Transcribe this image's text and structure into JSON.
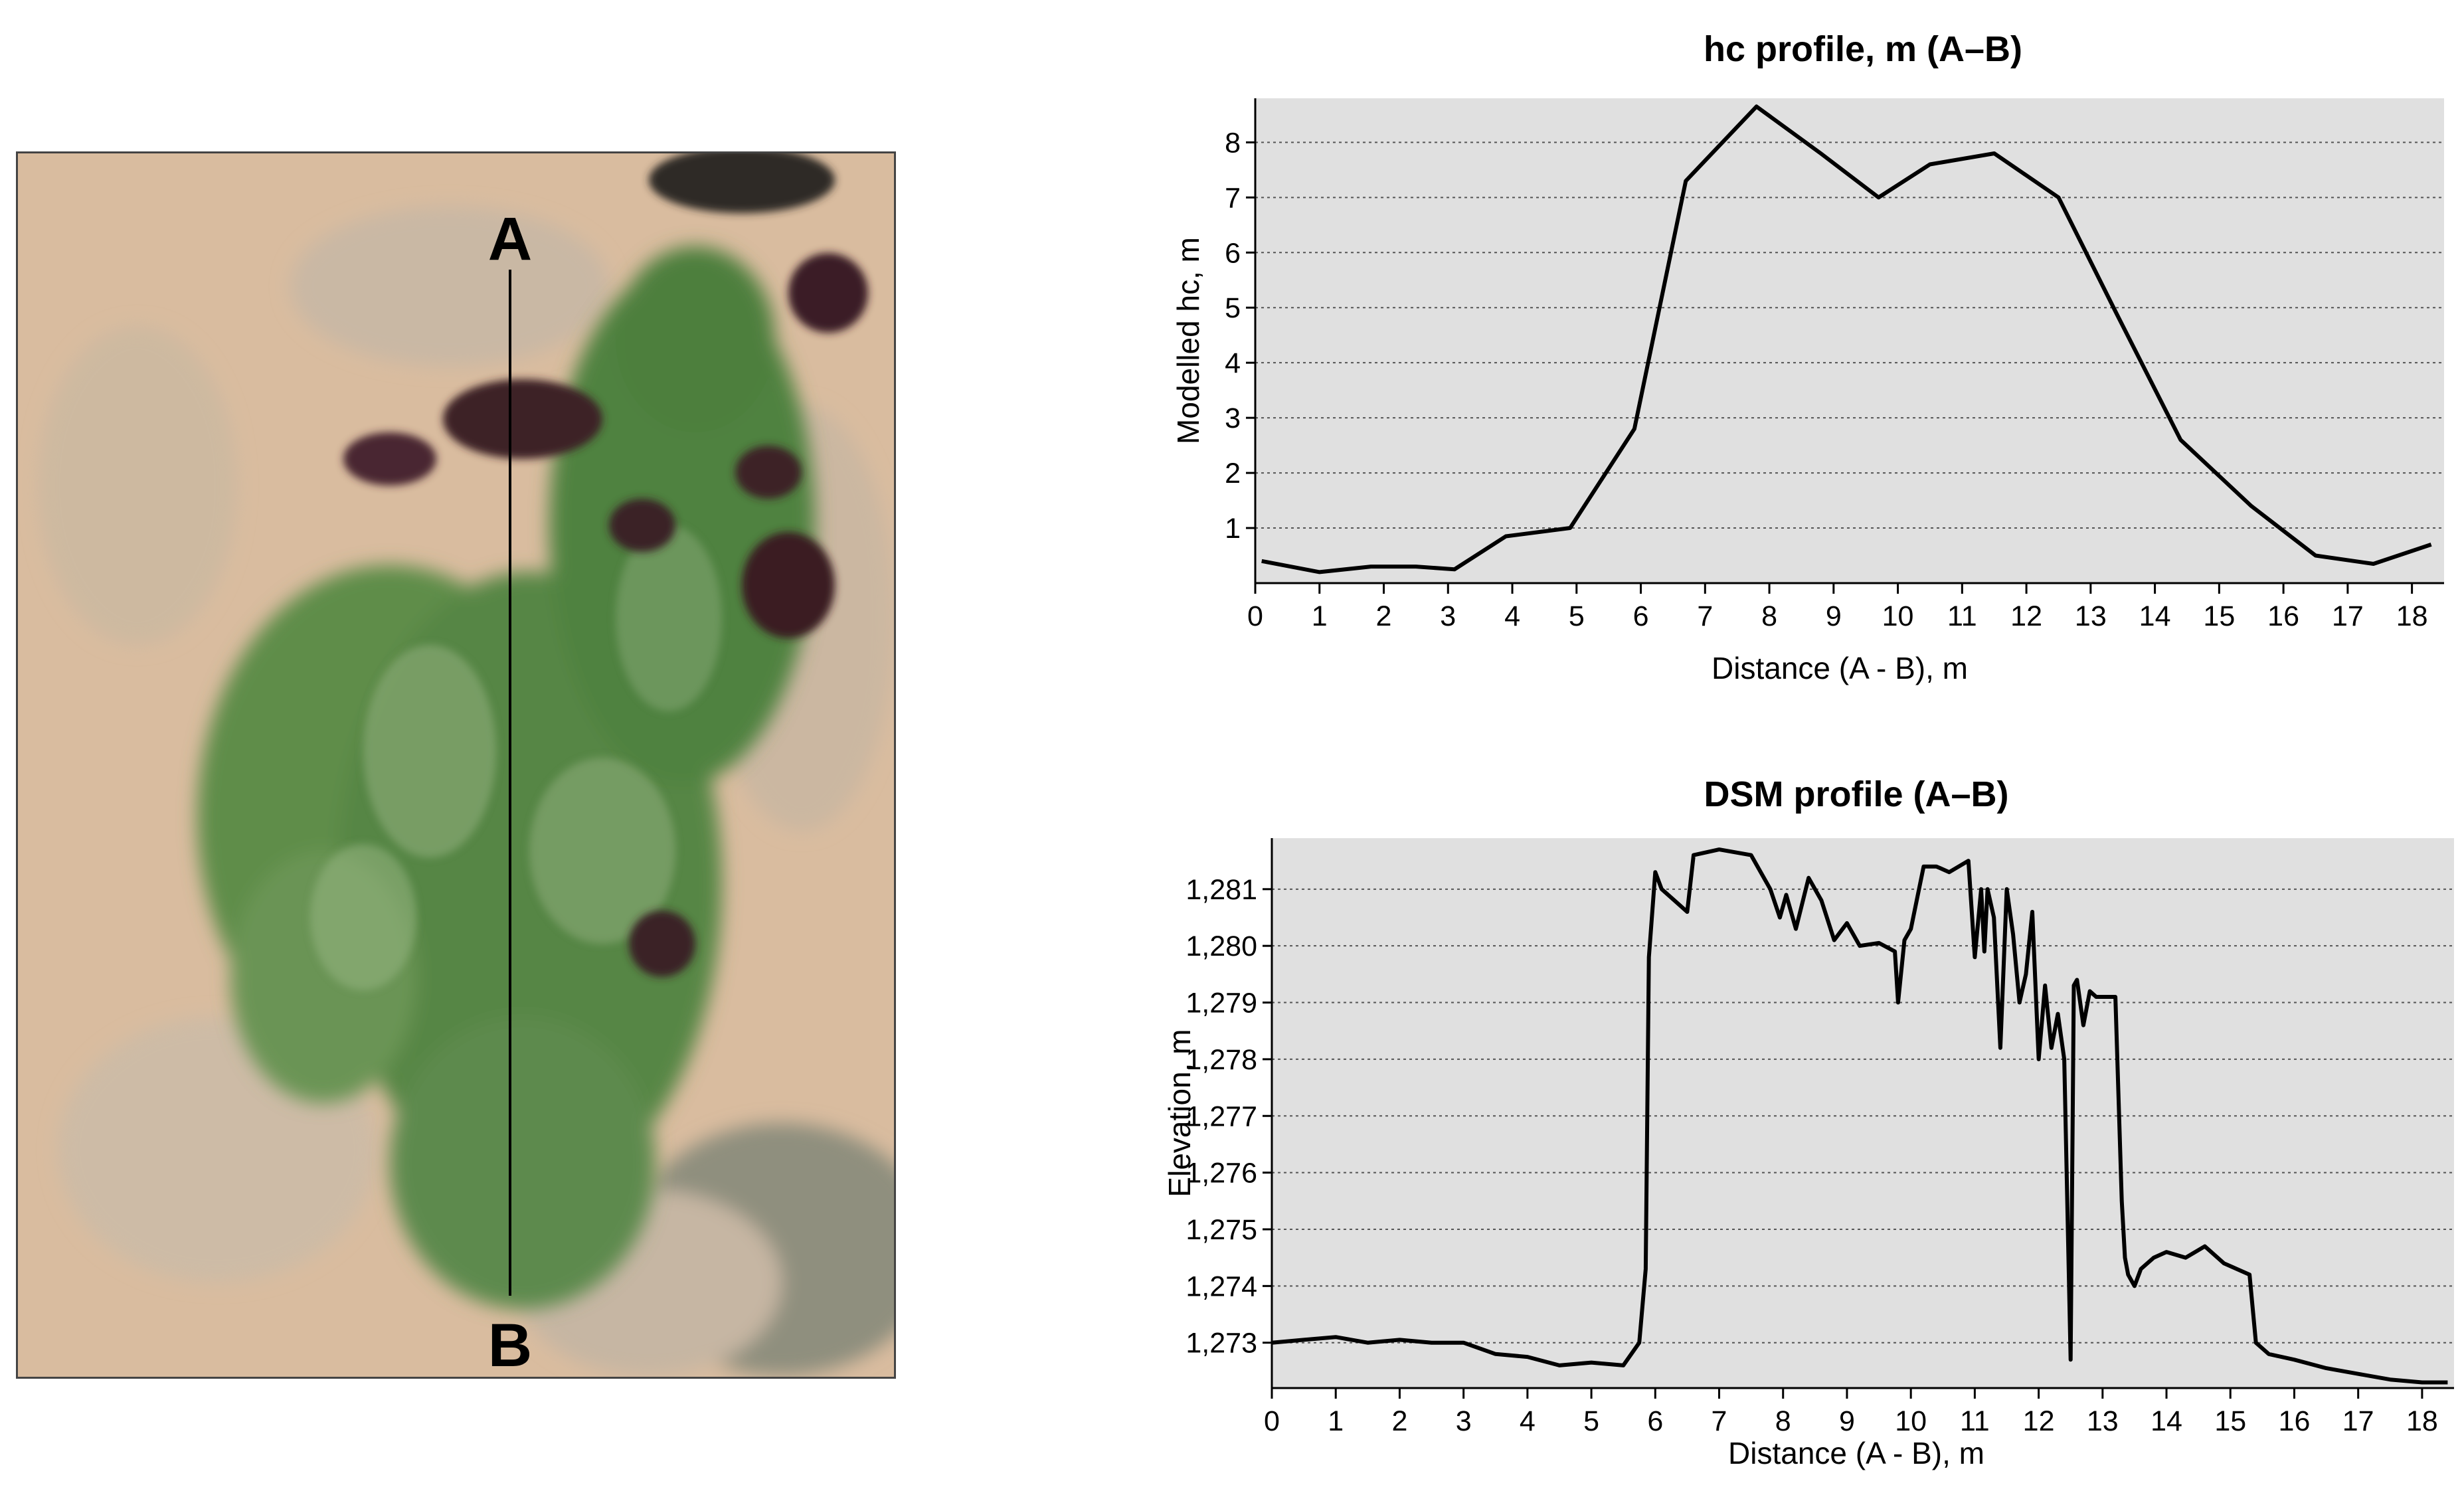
{
  "aerial_image": {
    "label_a": "A",
    "label_b": "B",
    "colors": {
      "soil": "#d8b99a",
      "canopy": "#5b8a48",
      "shadow": "#3a1f24",
      "transect": "#000000"
    }
  },
  "chart_data": [
    {
      "type": "line",
      "title": "hc profile, m (A–B)",
      "xlabel": "Distance (A - B), m",
      "ylabel": "Modelled hc, m",
      "xlim": [
        0,
        18.5
      ],
      "ylim": [
        0,
        8.8
      ],
      "xticks": [
        0,
        1,
        2,
        3,
        4,
        5,
        6,
        7,
        8,
        9,
        10,
        11,
        12,
        13,
        14,
        15,
        16,
        17,
        18
      ],
      "yticks": [
        1,
        2,
        3,
        4,
        5,
        6,
        7,
        8
      ],
      "grid": "horizontal dotted",
      "colors": {
        "plot_bg": "#e0e0e0",
        "line": "#000000"
      },
      "series": [
        {
          "x": [
            0.1,
            1.0,
            1.8,
            2.5,
            3.1,
            3.9,
            4.9,
            5.9,
            6.7,
            7.8,
            8.8,
            9.7,
            10.5,
            11.5,
            12.5,
            13.4,
            14.4,
            15.5,
            16.5,
            17.4,
            18.3
          ],
          "y": [
            0.4,
            0.2,
            0.3,
            0.3,
            0.25,
            0.85,
            1.0,
            2.8,
            7.3,
            8.65,
            7.8,
            7.0,
            7.6,
            7.8,
            7.0,
            4.9,
            2.6,
            1.4,
            0.5,
            0.35,
            0.7
          ]
        }
      ]
    },
    {
      "type": "line",
      "title": "DSM profile (A–B)",
      "xlabel": "Distance (A - B), m",
      "ylabel": "Elevation, m",
      "xlim": [
        0,
        18.5
      ],
      "ylim": [
        1272.2,
        1281.9
      ],
      "xticks": [
        0,
        1,
        2,
        3,
        4,
        5,
        6,
        7,
        8,
        9,
        10,
        11,
        12,
        13,
        14,
        15,
        16,
        17,
        18
      ],
      "yticks": [
        1273,
        1274,
        1275,
        1276,
        1277,
        1278,
        1279,
        1280,
        1281
      ],
      "ytick_labels": [
        "1,273",
        "1,274",
        "1,275",
        "1,276",
        "1,277",
        "1,278",
        "1,279",
        "1,280",
        "1,281"
      ],
      "grid": "horizontal dotted",
      "colors": {
        "plot_bg": "#e0e0e0",
        "line": "#000000"
      },
      "series": [
        {
          "x": [
            0.0,
            0.5,
            1.0,
            1.5,
            2.0,
            2.5,
            3.0,
            3.5,
            4.0,
            4.5,
            5.0,
            5.5,
            5.75,
            5.85,
            5.9,
            6.0,
            6.1,
            6.3,
            6.5,
            6.6,
            7.0,
            7.5,
            7.8,
            7.95,
            8.05,
            8.2,
            8.4,
            8.6,
            8.8,
            9.0,
            9.2,
            9.5,
            9.75,
            9.8,
            9.9,
            10.0,
            10.2,
            10.4,
            10.6,
            10.9,
            11.0,
            11.1,
            11.15,
            11.2,
            11.3,
            11.4,
            11.5,
            11.6,
            11.7,
            11.8,
            11.9,
            12.0,
            12.1,
            12.2,
            12.3,
            12.4,
            12.5,
            12.55,
            12.6,
            12.7,
            12.8,
            12.9,
            13.0,
            13.2,
            13.3,
            13.35,
            13.4,
            13.5,
            13.6,
            13.8,
            14.0,
            14.3,
            14.6,
            14.9,
            15.1,
            15.3,
            15.4,
            15.6,
            16.0,
            16.5,
            17.0,
            17.5,
            18.0,
            18.4
          ],
          "y": [
            1273.0,
            1273.05,
            1273.1,
            1273.0,
            1273.05,
            1273.0,
            1273.0,
            1272.8,
            1272.75,
            1272.6,
            1272.65,
            1272.6,
            1273.0,
            1274.3,
            1279.8,
            1281.3,
            1281.0,
            1280.8,
            1280.6,
            1281.6,
            1281.7,
            1281.6,
            1281.0,
            1280.5,
            1280.9,
            1280.3,
            1281.2,
            1280.8,
            1280.1,
            1280.4,
            1280.0,
            1280.05,
            1279.9,
            1279.0,
            1280.1,
            1280.3,
            1281.4,
            1281.4,
            1281.3,
            1281.5,
            1279.8,
            1281.0,
            1279.9,
            1281.0,
            1280.5,
            1278.2,
            1281.0,
            1280.2,
            1279.0,
            1279.5,
            1280.6,
            1278.0,
            1279.3,
            1278.2,
            1278.8,
            1278.0,
            1272.7,
            1279.3,
            1279.4,
            1278.6,
            1279.2,
            1279.1,
            1279.1,
            1279.1,
            1275.5,
            1274.5,
            1274.2,
            1274.0,
            1274.3,
            1274.5,
            1274.6,
            1274.5,
            1274.7,
            1274.4,
            1274.3,
            1274.2,
            1273.0,
            1272.8,
            1272.7,
            1272.55,
            1272.45,
            1272.35,
            1272.3,
            1272.3
          ]
        }
      ]
    }
  ]
}
